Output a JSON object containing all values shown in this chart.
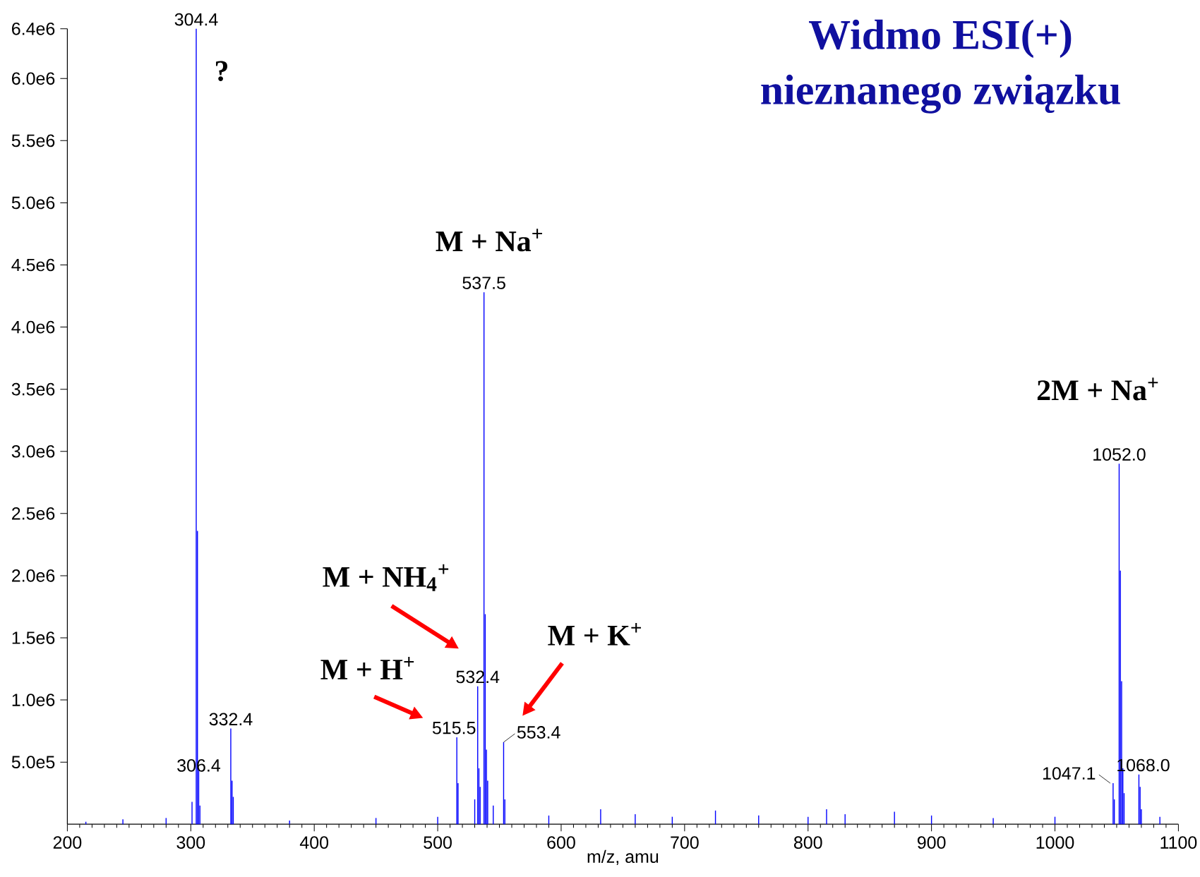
{
  "chart_data": {
    "type": "bar",
    "title": "Widmo ESI(+)",
    "subtitle": "nieznanego związku",
    "xlabel": "m/z, amu",
    "color": "#0000ff",
    "x": [
      215,
      245,
      280,
      301,
      304.4,
      305.4,
      306.4,
      307.4,
      332.4,
      333.4,
      334.4,
      380,
      450,
      500,
      515.5,
      516.5,
      530,
      532.4,
      533.4,
      534.4,
      537.5,
      538.5,
      539.5,
      540.5,
      545,
      553.4,
      554.4,
      590,
      632,
      660,
      690,
      725,
      760,
      800,
      815,
      830,
      870,
      900,
      950,
      1000,
      1047.1,
      1048.1,
      1052.0,
      1053.0,
      1054.0,
      1055.0,
      1056.0,
      1068.0,
      1069.0,
      1070.0,
      1085
    ],
    "values": [
      20000,
      40000,
      50000,
      180000,
      6400000,
      2360000,
      450000,
      150000,
      770000,
      350000,
      220000,
      30000,
      50000,
      60000,
      700000,
      330000,
      200000,
      1110000,
      450000,
      300000,
      4280000,
      1690000,
      600000,
      350000,
      150000,
      660000,
      200000,
      70000,
      120000,
      80000,
      60000,
      110000,
      70000,
      60000,
      120000,
      80000,
      100000,
      70000,
      50000,
      60000,
      330000,
      200000,
      2900000,
      2040000,
      1150000,
      450000,
      250000,
      400000,
      300000,
      120000,
      60000
    ],
    "xlim": [
      200,
      1100
    ],
    "xticks": [
      200,
      300,
      400,
      500,
      600,
      700,
      800,
      900,
      1000,
      1100
    ],
    "ylim": [
      0,
      6400000
    ],
    "yticks": [
      {
        "value": 500000,
        "label": "5.0e5"
      },
      {
        "value": 1000000,
        "label": "1.0e6"
      },
      {
        "value": 1500000,
        "label": "1.5e6"
      },
      {
        "value": 2000000,
        "label": "2.0e6"
      },
      {
        "value": 2500000,
        "label": "2.5e6"
      },
      {
        "value": 3000000,
        "label": "3.0e6"
      },
      {
        "value": 3500000,
        "label": "3.5e6"
      },
      {
        "value": 4000000,
        "label": "4.0e6"
      },
      {
        "value": 4500000,
        "label": "4.5e6"
      },
      {
        "value": 5000000,
        "label": "5.0e6"
      },
      {
        "value": 5500000,
        "label": "5.5e6"
      },
      {
        "value": 6000000,
        "label": "6.0e6"
      },
      {
        "value": 6400000,
        "label": "6.4e6"
      }
    ],
    "annotations": [
      {
        "text": "304.4",
        "x": 304.4,
        "y": 6400000
      },
      {
        "text": "306.4",
        "x": 306.4,
        "y": 450000
      },
      {
        "text": "332.4",
        "x": 332.4,
        "y": 770000
      },
      {
        "text": "515.5",
        "x": 515.5,
        "y": 700000
      },
      {
        "text": "532.4",
        "x": 532.4,
        "y": 1110000
      },
      {
        "text": "537.5",
        "x": 537.5,
        "y": 4280000
      },
      {
        "text": "553.4",
        "x": 553.4,
        "y": 660000
      },
      {
        "text": "1047.1",
        "x": 1047.1,
        "y": 330000
      },
      {
        "text": "1052.0",
        "x": 1052.0,
        "y": 2900000
      },
      {
        "text": "1068.0",
        "x": 1068.0,
        "y": 400000
      },
      {
        "text": "?",
        "x": 304.4,
        "y": 6400000
      },
      {
        "text": "M + Na$^{+}$",
        "x": 537.5,
        "y": 4280000
      },
      "M + NH$_{4}$$^{+}$",
      {
        "text": "M + H$^{+}$",
        "x": 515.5,
        "y": 700000
      },
      "M + K$^{+}$",
      {
        "text": "2M + Na$^{+}$",
        "x": 1052.0,
        "y": 2900000
      }
    ]
  }
}
